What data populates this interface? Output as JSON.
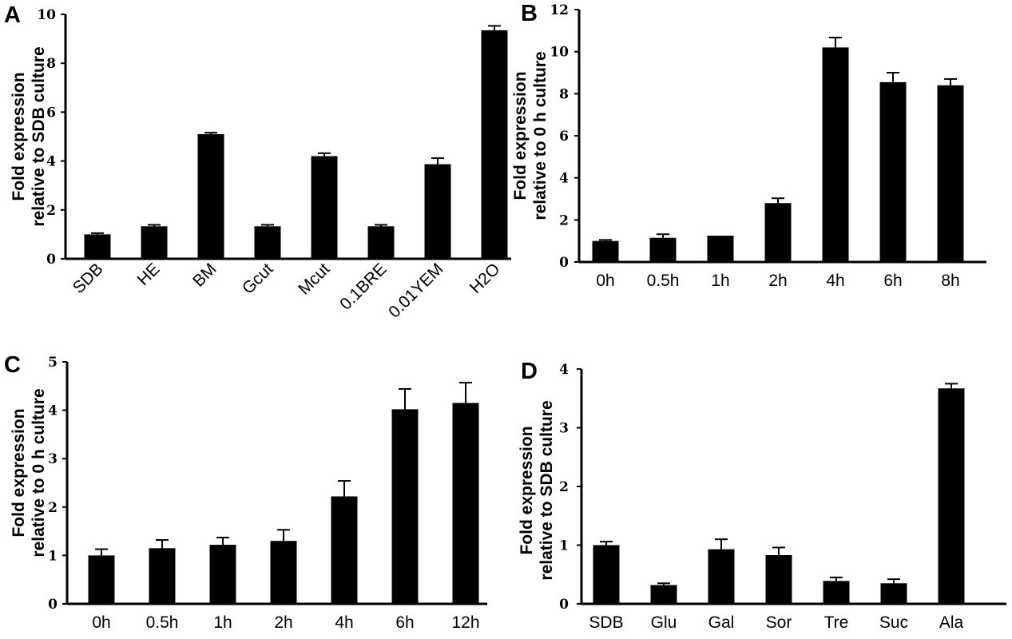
{
  "chart_data": [
    {
      "panel_label": "A",
      "type": "bar",
      "ylabel_lines": [
        "Fold expression",
        "relative to SDB culture"
      ],
      "ylim": [
        0,
        10
      ],
      "yticks": [
        "0",
        "2",
        "4",
        "6",
        "8",
        "10"
      ],
      "categories": [
        "SDB",
        "HE",
        "BM",
        "Gcut",
        "Mcut",
        "0.1BRE",
        "0.01YEM",
        "H2O"
      ],
      "values": [
        1.0,
        1.33,
        5.1,
        1.33,
        4.2,
        1.33,
        3.87,
        9.35
      ],
      "errors": [
        0.05,
        0.06,
        0.06,
        0.06,
        0.12,
        0.06,
        0.25,
        0.18
      ]
    },
    {
      "panel_label": "B",
      "type": "bar",
      "ylabel_lines": [
        "Fold expression",
        "relative to 0 h culture"
      ],
      "ylim": [
        0,
        12
      ],
      "yticks": [
        "0",
        "2",
        "4",
        "6",
        "8",
        "10",
        "12"
      ],
      "categories": [
        "0h",
        "0.5h",
        "1h",
        "2h",
        "4h",
        "6h",
        "8h"
      ],
      "values": [
        1.0,
        1.15,
        1.25,
        2.8,
        10.2,
        8.55,
        8.4
      ],
      "errors": [
        0.05,
        0.17,
        0.0,
        0.23,
        0.47,
        0.45,
        0.3
      ]
    },
    {
      "panel_label": "C",
      "type": "bar",
      "ylabel_lines": [
        "Fold expression",
        "relative to  0 h culture"
      ],
      "ylim": [
        0,
        5
      ],
      "yticks": [
        "0",
        "1",
        "2",
        "3",
        "4",
        "5"
      ],
      "categories": [
        "0h",
        "0.5h",
        "1h",
        "2h",
        "4h",
        "6h",
        "12h"
      ],
      "values": [
        1.0,
        1.15,
        1.22,
        1.3,
        2.22,
        4.02,
        4.15
      ],
      "errors": [
        0.13,
        0.17,
        0.15,
        0.23,
        0.32,
        0.42,
        0.42
      ]
    },
    {
      "panel_label": "D",
      "type": "bar",
      "ylabel_lines": [
        "Fold expression",
        "relative to SDB culture"
      ],
      "ylim": [
        0,
        4
      ],
      "yticks": [
        "0",
        "1",
        "2",
        "3",
        "4"
      ],
      "categories": [
        "SDB",
        "Glu",
        "Gal",
        "Sor",
        "Tre",
        "Suc",
        "Ala"
      ],
      "values": [
        1.0,
        0.32,
        0.93,
        0.83,
        0.39,
        0.35,
        3.67
      ],
      "errors": [
        0.06,
        0.03,
        0.17,
        0.13,
        0.06,
        0.07,
        0.08
      ]
    }
  ]
}
